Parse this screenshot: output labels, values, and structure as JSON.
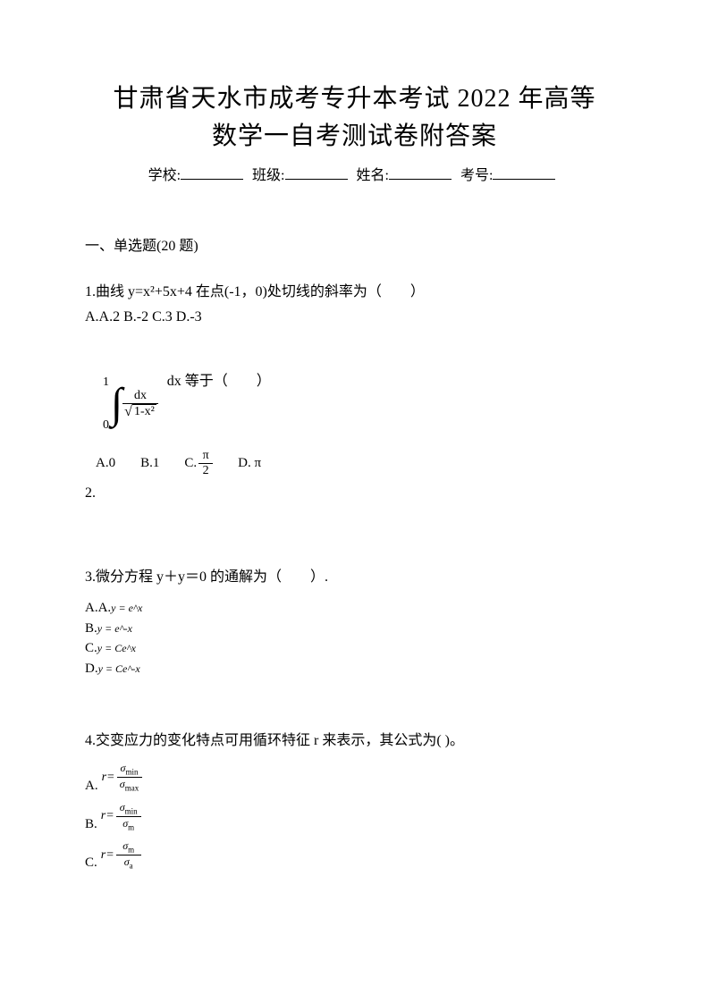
{
  "title": {
    "line1": "甘肃省天水市成考专升本考试 2022 年高等",
    "line2": "数学一自考测试卷附答案"
  },
  "info_labels": {
    "school": "学校:",
    "class": "班级:",
    "name": "姓名:",
    "exam_no": "考号:"
  },
  "section1": "一、单选题(20 题)",
  "q1": {
    "text": "1.曲线 y=x²+5x+4 在点(-1，0)处切线的斜率为（　　）",
    "options": "A.A.2 B.-2 C.3 D.-3"
  },
  "q2": {
    "number": "2.",
    "upper_bound": "1",
    "lower_bound": "0",
    "numerator": "dx",
    "sqrt_content": "1-x²",
    "dx_text": " dx 等于（　　）",
    "opt_a": "A.0",
    "opt_b": "B.1",
    "opt_c_label": "C.",
    "opt_c_num": "π",
    "opt_c_den": "2",
    "opt_d": "D. π"
  },
  "q3": {
    "text": "3.微分方程 y＋y＝0 的通解为（　　）.",
    "a_label": "A.A.",
    "a_math": "y = e^x",
    "b_label": "B.",
    "b_math": "y = e^-x",
    "c_label": "C.",
    "c_math": "y = Ce^x",
    "d_label": "D.",
    "d_math": "y = Ce^-x"
  },
  "q4": {
    "text": "4.交变应力的变化特点可用循环特征 r 来表示，其公式为( )。",
    "a_label": "A.",
    "a_num": "σ",
    "a_num_sub": "min",
    "a_den": "σ",
    "a_den_sub": "max",
    "b_label": "B.",
    "b_num": "σ",
    "b_num_sub": "min",
    "b_den": "σ",
    "b_den_sub": "m",
    "c_label": "C.",
    "c_num": "σ",
    "c_num_sub": "m",
    "c_den": "σ",
    "c_den_sub": "a"
  },
  "colors": {
    "text": "#000000",
    "background": "#ffffff"
  },
  "typography": {
    "title_fontsize": 28,
    "body_fontsize": 16,
    "math_small_fontsize": 12
  }
}
